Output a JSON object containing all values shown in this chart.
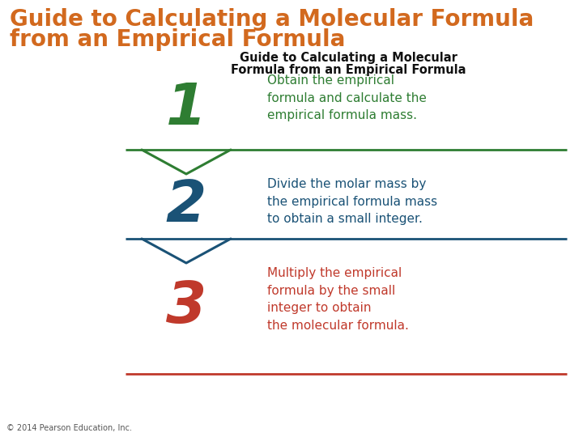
{
  "title_line1": "Guide to Calculating a Molecular Formula",
  "title_line2": "from an Empirical Formula",
  "title_color": "#D2691E",
  "subtitle_line1": "Guide to Calculating a Molecular",
  "subtitle_line2": "Formula from an Empirical Formula",
  "subtitle_color": "#111111",
  "bg_color": "#ffffff",
  "steps": [
    {
      "number": "1",
      "number_color": "#2e7d32",
      "text": "Obtain the empirical\nformula and calculate the\nempirical formula mass.",
      "text_color": "#2e7d32",
      "line_color": "#2e7d32"
    },
    {
      "number": "2",
      "number_color": "#1a5276",
      "text": "Divide the molar mass by\nthe empirical formula mass\nto obtain a small integer.",
      "text_color": "#1a5276",
      "line_color": "#1a5276"
    },
    {
      "number": "3",
      "number_color": "#c0392b",
      "text": "Multiply the empirical\nformula by the small\ninteger to obtain\nthe molecular formula.",
      "text_color": "#c0392b",
      "line_color": "#c0392b"
    }
  ],
  "copyright": "© 2014 Pearson Education, Inc.",
  "copyright_color": "#555555"
}
